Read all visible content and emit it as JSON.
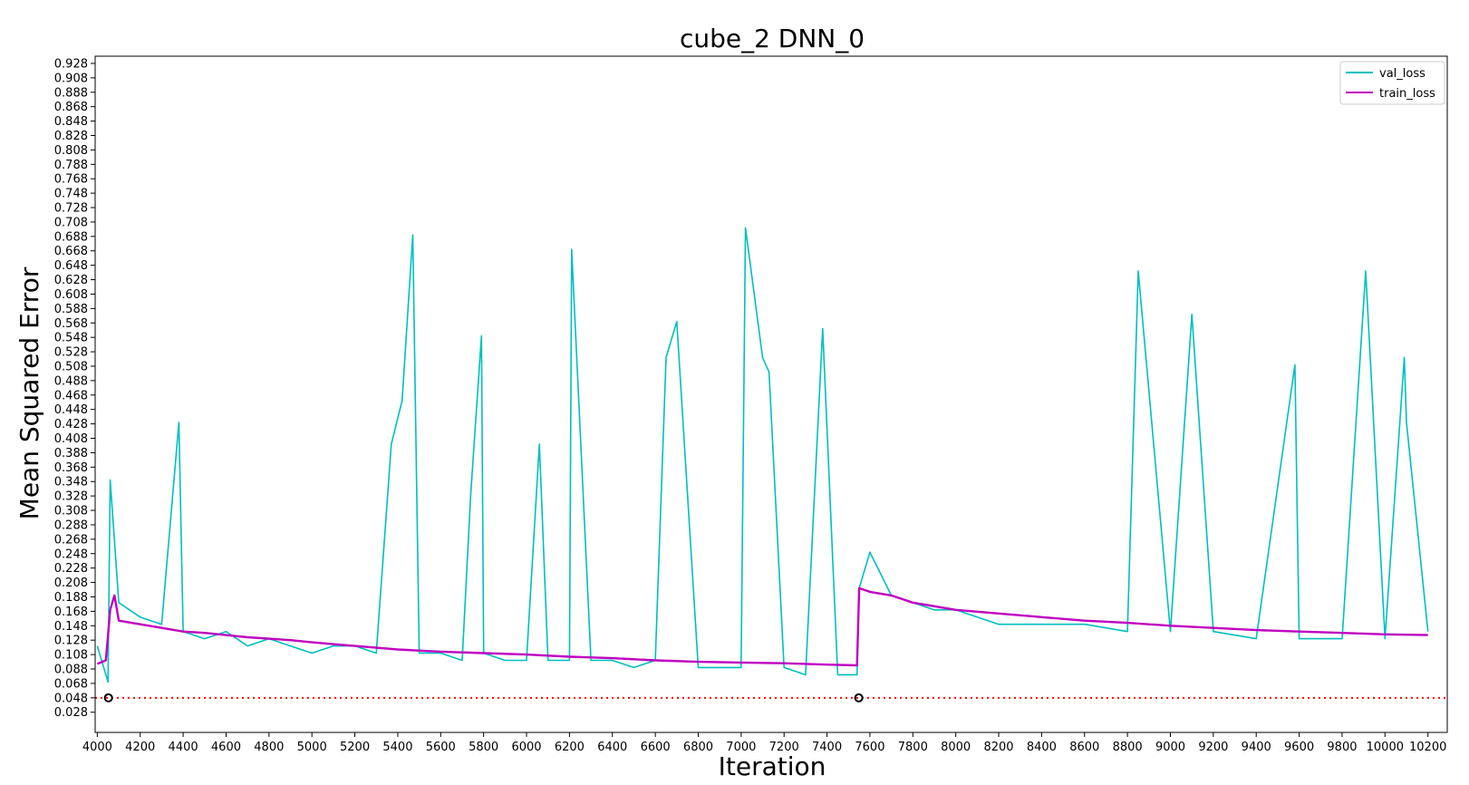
{
  "chart_data": {
    "type": "line",
    "title": "cube_2 DNN_0",
    "xlabel": "Iteration",
    "ylabel": "Mean Squared Error",
    "xlim": [
      3990,
      10290
    ],
    "ylim": [
      0.0,
      0.938
    ],
    "x_ticks": [
      "4000",
      "4200",
      "4400",
      "4600",
      "4800",
      "5000",
      "5200",
      "5400",
      "5600",
      "5800",
      "6000",
      "6200",
      "6400",
      "6600",
      "6800",
      "7000",
      "7200",
      "7400",
      "7600",
      "7800",
      "8000",
      "8200",
      "8400",
      "8600",
      "8800",
      "9000",
      "9200",
      "9400",
      "9600",
      "9800",
      "10000",
      "10200"
    ],
    "y_ticks": [
      "0.028",
      "0.048",
      "0.068",
      "0.088",
      "0.108",
      "0.128",
      "0.148",
      "0.168",
      "0.188",
      "0.208",
      "0.228",
      "0.248",
      "0.268",
      "0.288",
      "0.308",
      "0.328",
      "0.348",
      "0.368",
      "0.388",
      "0.408",
      "0.428",
      "0.448",
      "0.468",
      "0.488",
      "0.508",
      "0.528",
      "0.548",
      "0.568",
      "0.588",
      "0.608",
      "0.628",
      "0.648",
      "0.668",
      "0.688",
      "0.708",
      "0.728",
      "0.748",
      "0.768",
      "0.788",
      "0.808",
      "0.828",
      "0.848",
      "0.868",
      "0.888",
      "0.908",
      "0.928"
    ],
    "grid": false,
    "legend_position": "top-right",
    "reference_line": {
      "y": 0.048,
      "color": "#ff0000",
      "style": "dotted"
    },
    "markers": [
      {
        "x": 4052,
        "y": 0.048
      },
      {
        "x": 7548,
        "y": 0.048
      }
    ],
    "series": [
      {
        "name": "val_loss",
        "color": "#00bfbf",
        "x": [
          4000,
          4050,
          4060,
          4100,
          4200,
          4300,
          4380,
          4400,
          4500,
          4600,
          4700,
          4800,
          4900,
          5000,
          5100,
          5200,
          5300,
          5370,
          5420,
          5470,
          5500,
          5600,
          5700,
          5740,
          5790,
          5800,
          5900,
          6000,
          6060,
          6100,
          6200,
          6210,
          6300,
          6400,
          6500,
          6600,
          6650,
          6700,
          6800,
          6900,
          7000,
          7020,
          7100,
          7130,
          7200,
          7300,
          7380,
          7450,
          7540,
          7550,
          7600,
          7700,
          7800,
          7900,
          8000,
          8100,
          8200,
          8400,
          8600,
          8800,
          8850,
          9000,
          9100,
          9200,
          9400,
          9580,
          9600,
          9800,
          9910,
          10000,
          10090,
          10100,
          10200
        ],
        "y": [
          0.12,
          0.07,
          0.35,
          0.18,
          0.16,
          0.15,
          0.43,
          0.14,
          0.13,
          0.14,
          0.12,
          0.13,
          0.12,
          0.11,
          0.12,
          0.12,
          0.11,
          0.4,
          0.46,
          0.69,
          0.11,
          0.11,
          0.1,
          0.33,
          0.55,
          0.11,
          0.1,
          0.1,
          0.4,
          0.1,
          0.1,
          0.67,
          0.1,
          0.1,
          0.09,
          0.1,
          0.52,
          0.57,
          0.09,
          0.09,
          0.09,
          0.7,
          0.52,
          0.5,
          0.09,
          0.08,
          0.56,
          0.08,
          0.08,
          0.2,
          0.25,
          0.19,
          0.18,
          0.17,
          0.17,
          0.16,
          0.15,
          0.15,
          0.15,
          0.14,
          0.64,
          0.14,
          0.58,
          0.14,
          0.13,
          0.51,
          0.13,
          0.13,
          0.64,
          0.13,
          0.52,
          0.43,
          0.14
        ]
      },
      {
        "name": "train_loss",
        "color": "#bf00bf",
        "x": [
          4000,
          4040,
          4060,
          4080,
          4100,
          4200,
          4300,
          4400,
          4500,
          4600,
          4700,
          4800,
          4900,
          5000,
          5200,
          5400,
          5600,
          5800,
          6000,
          6200,
          6400,
          6600,
          6800,
          7000,
          7200,
          7400,
          7540,
          7550,
          7600,
          7700,
          7800,
          8000,
          8200,
          8400,
          8600,
          8800,
          9000,
          9200,
          9400,
          9600,
          9800,
          10000,
          10200
        ],
        "y": [
          0.095,
          0.1,
          0.17,
          0.19,
          0.155,
          0.15,
          0.145,
          0.14,
          0.138,
          0.135,
          0.132,
          0.13,
          0.128,
          0.125,
          0.12,
          0.115,
          0.112,
          0.11,
          0.108,
          0.105,
          0.103,
          0.1,
          0.098,
          0.097,
          0.096,
          0.094,
          0.093,
          0.2,
          0.195,
          0.19,
          0.18,
          0.17,
          0.165,
          0.16,
          0.155,
          0.152,
          0.148,
          0.145,
          0.142,
          0.14,
          0.138,
          0.136,
          0.135
        ]
      }
    ]
  }
}
